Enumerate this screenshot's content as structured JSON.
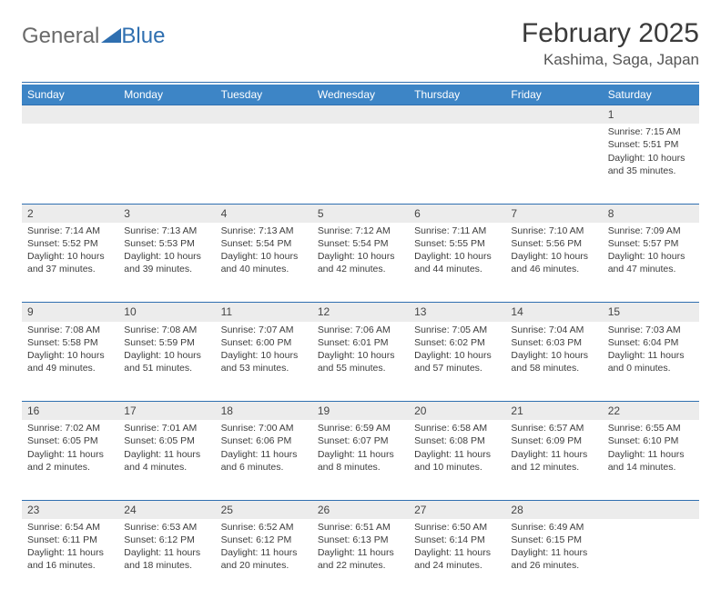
{
  "brand": {
    "text_general": "General",
    "text_blue": "Blue",
    "accent_color": "#2f6fb0"
  },
  "title": "February 2025",
  "location": "Kashima, Saga, Japan",
  "header_bg": "#3d85c6",
  "header_fg": "#ffffff",
  "row_stripe_bg": "#ececec",
  "columns": [
    "Sunday",
    "Monday",
    "Tuesday",
    "Wednesday",
    "Thursday",
    "Friday",
    "Saturday"
  ],
  "days": {
    "1": {
      "sunrise": "7:15 AM",
      "sunset": "5:51 PM",
      "daylight": "10 hours and 35 minutes."
    },
    "2": {
      "sunrise": "7:14 AM",
      "sunset": "5:52 PM",
      "daylight": "10 hours and 37 minutes."
    },
    "3": {
      "sunrise": "7:13 AM",
      "sunset": "5:53 PM",
      "daylight": "10 hours and 39 minutes."
    },
    "4": {
      "sunrise": "7:13 AM",
      "sunset": "5:54 PM",
      "daylight": "10 hours and 40 minutes."
    },
    "5": {
      "sunrise": "7:12 AM",
      "sunset": "5:54 PM",
      "daylight": "10 hours and 42 minutes."
    },
    "6": {
      "sunrise": "7:11 AM",
      "sunset": "5:55 PM",
      "daylight": "10 hours and 44 minutes."
    },
    "7": {
      "sunrise": "7:10 AM",
      "sunset": "5:56 PM",
      "daylight": "10 hours and 46 minutes."
    },
    "8": {
      "sunrise": "7:09 AM",
      "sunset": "5:57 PM",
      "daylight": "10 hours and 47 minutes."
    },
    "9": {
      "sunrise": "7:08 AM",
      "sunset": "5:58 PM",
      "daylight": "10 hours and 49 minutes."
    },
    "10": {
      "sunrise": "7:08 AM",
      "sunset": "5:59 PM",
      "daylight": "10 hours and 51 minutes."
    },
    "11": {
      "sunrise": "7:07 AM",
      "sunset": "6:00 PM",
      "daylight": "10 hours and 53 minutes."
    },
    "12": {
      "sunrise": "7:06 AM",
      "sunset": "6:01 PM",
      "daylight": "10 hours and 55 minutes."
    },
    "13": {
      "sunrise": "7:05 AM",
      "sunset": "6:02 PM",
      "daylight": "10 hours and 57 minutes."
    },
    "14": {
      "sunrise": "7:04 AM",
      "sunset": "6:03 PM",
      "daylight": "10 hours and 58 minutes."
    },
    "15": {
      "sunrise": "7:03 AM",
      "sunset": "6:04 PM",
      "daylight": "11 hours and 0 minutes."
    },
    "16": {
      "sunrise": "7:02 AM",
      "sunset": "6:05 PM",
      "daylight": "11 hours and 2 minutes."
    },
    "17": {
      "sunrise": "7:01 AM",
      "sunset": "6:05 PM",
      "daylight": "11 hours and 4 minutes."
    },
    "18": {
      "sunrise": "7:00 AM",
      "sunset": "6:06 PM",
      "daylight": "11 hours and 6 minutes."
    },
    "19": {
      "sunrise": "6:59 AM",
      "sunset": "6:07 PM",
      "daylight": "11 hours and 8 minutes."
    },
    "20": {
      "sunrise": "6:58 AM",
      "sunset": "6:08 PM",
      "daylight": "11 hours and 10 minutes."
    },
    "21": {
      "sunrise": "6:57 AM",
      "sunset": "6:09 PM",
      "daylight": "11 hours and 12 minutes."
    },
    "22": {
      "sunrise": "6:55 AM",
      "sunset": "6:10 PM",
      "daylight": "11 hours and 14 minutes."
    },
    "23": {
      "sunrise": "6:54 AM",
      "sunset": "6:11 PM",
      "daylight": "11 hours and 16 minutes."
    },
    "24": {
      "sunrise": "6:53 AM",
      "sunset": "6:12 PM",
      "daylight": "11 hours and 18 minutes."
    },
    "25": {
      "sunrise": "6:52 AM",
      "sunset": "6:12 PM",
      "daylight": "11 hours and 20 minutes."
    },
    "26": {
      "sunrise": "6:51 AM",
      "sunset": "6:13 PM",
      "daylight": "11 hours and 22 minutes."
    },
    "27": {
      "sunrise": "6:50 AM",
      "sunset": "6:14 PM",
      "daylight": "11 hours and 24 minutes."
    },
    "28": {
      "sunrise": "6:49 AM",
      "sunset": "6:15 PM",
      "daylight": "11 hours and 26 minutes."
    }
  },
  "labels": {
    "sunrise": "Sunrise: ",
    "sunset": "Sunset: ",
    "daylight": "Daylight: "
  },
  "weeks": [
    [
      "",
      "",
      "",
      "",
      "",
      "",
      "1"
    ],
    [
      "2",
      "3",
      "4",
      "5",
      "6",
      "7",
      "8"
    ],
    [
      "9",
      "10",
      "11",
      "12",
      "13",
      "14",
      "15"
    ],
    [
      "16",
      "17",
      "18",
      "19",
      "20",
      "21",
      "22"
    ],
    [
      "23",
      "24",
      "25",
      "26",
      "27",
      "28",
      ""
    ]
  ]
}
